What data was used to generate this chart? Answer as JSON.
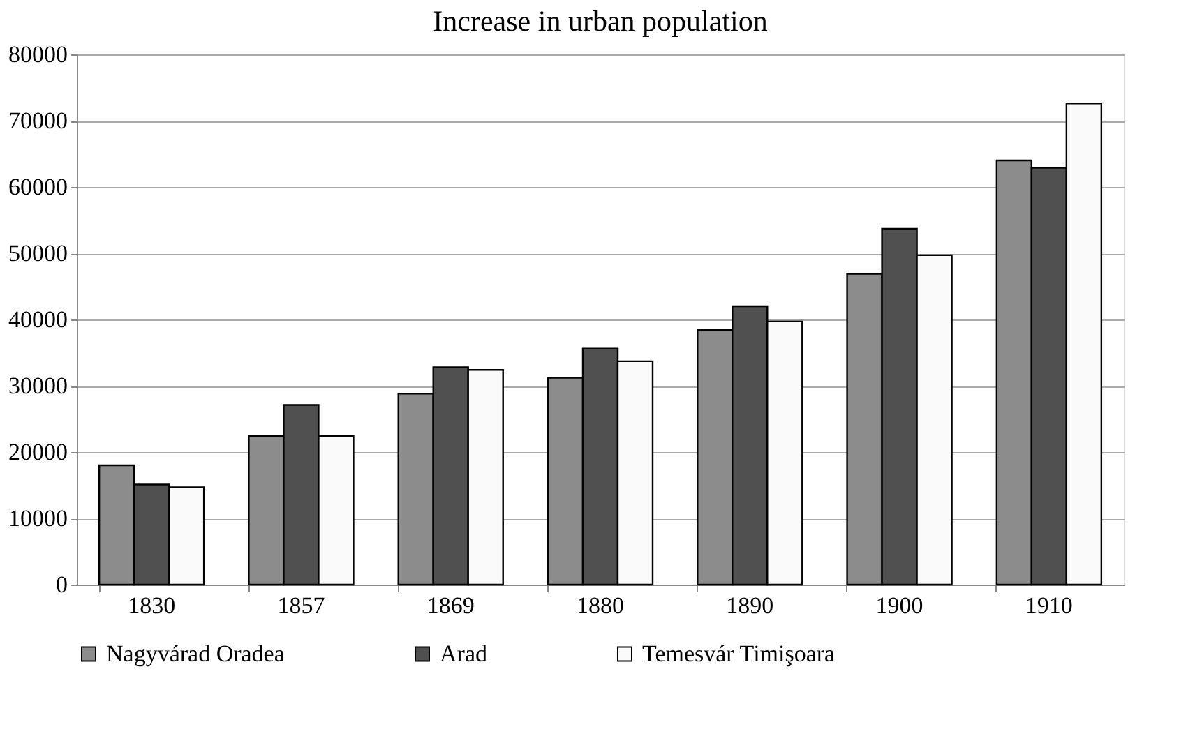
{
  "chart_data": {
    "type": "bar",
    "title": "Increase in urban population",
    "categories": [
      "1830",
      "1857",
      "1869",
      "1880",
      "1890",
      "1900",
      "1910"
    ],
    "series": [
      {
        "name": "Nagyvárad Oradea",
        "color": "#8c8c8c",
        "values": [
          18000,
          22400,
          28800,
          31200,
          38400,
          46900,
          64000
        ]
      },
      {
        "name": "Arad",
        "color": "#505050",
        "values": [
          15100,
          27100,
          32800,
          35600,
          42000,
          53700,
          62900
        ]
      },
      {
        "name": "Temesvár Timişoara",
        "color": "#fafafa",
        "values": [
          14700,
          22400,
          32400,
          33700,
          39700,
          49700,
          72600
        ]
      }
    ],
    "ylim": [
      0,
      80000
    ],
    "yticks": [
      0,
      10000,
      20000,
      30000,
      40000,
      50000,
      60000,
      70000,
      80000
    ],
    "grid": "y",
    "legend": "bottom"
  }
}
